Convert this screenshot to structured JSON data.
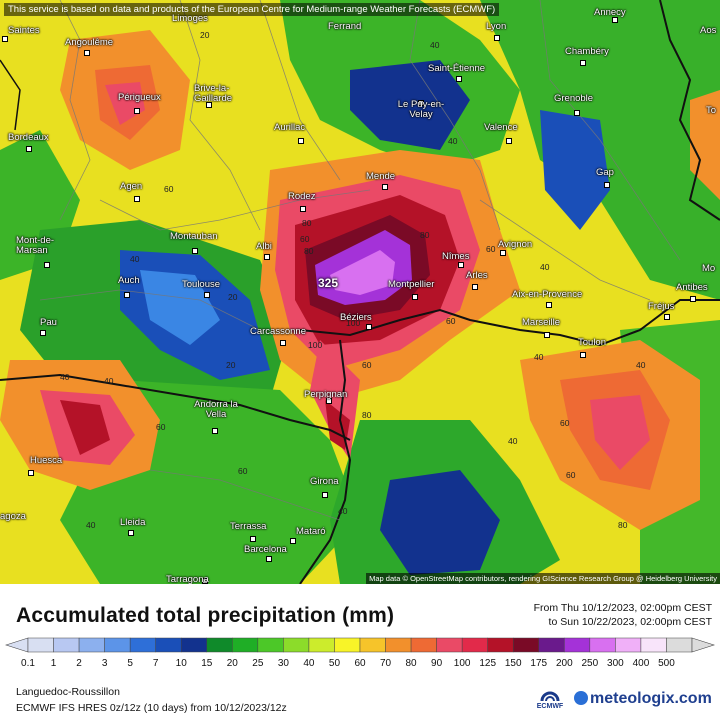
{
  "disclaimer": "This service is based on data and products of the European Centre for Medium-range Weather Forecasts (ECMWF)",
  "attribution": "Map data © OpenStreetMap contributors, rendering GIScience Research Group @ Heidelberg University",
  "title": "Accumulated total precipitation (mm)",
  "date_from": "From Thu 10/12/2023, 02:00pm CEST",
  "date_to": "to Sun 10/22/2023, 02:00pm CEST",
  "region": "Languedoc-Roussillon",
  "model": "ECMWF IFS HRES 0z/12z (10 days) from 10/12/2023/12z",
  "ecmwf_logo_text": "ECMWF",
  "brand": "meteologix.com",
  "max_value": "325",
  "legend": {
    "labels": [
      "0.1",
      "1",
      "2",
      "3",
      "5",
      "7",
      "10",
      "15",
      "20",
      "25",
      "30",
      "40",
      "50",
      "60",
      "70",
      "80",
      "90",
      "100",
      "125",
      "150",
      "175",
      "200",
      "250",
      "300",
      "400",
      "500"
    ],
    "colors": [
      "#d8dff2",
      "#b8c8f2",
      "#8cb0ee",
      "#5c94e8",
      "#2e6fd8",
      "#1a4fb8",
      "#12328e",
      "#0f8a2a",
      "#1fae26",
      "#4cc828",
      "#8cdc2a",
      "#ccec2c",
      "#f8f428",
      "#f6c42a",
      "#f2902c",
      "#ee6a34",
      "#ea4a66",
      "#e22a4a",
      "#b41228",
      "#7a0a26",
      "#6a1a8c",
      "#a432d8",
      "#d870f0",
      "#f0b0f8",
      "#f8e4fa",
      "#dcdcdc"
    ]
  },
  "cities": [
    {
      "name": "Saintes"
    },
    {
      "name": "Angoulême"
    },
    {
      "name": "Limoges"
    },
    {
      "name": "Ferrand"
    },
    {
      "name": "Lyon"
    },
    {
      "name": "Annecy"
    },
    {
      "name": "Aos"
    },
    {
      "name": "Chambéry"
    },
    {
      "name": "Saint-Étienne"
    },
    {
      "name": "Périgueux"
    },
    {
      "name": "Brive-la-Gaillarde"
    },
    {
      "name": "Le Puy-en-Velay"
    },
    {
      "name": "Grenoble"
    },
    {
      "name": "Bordeaux"
    },
    {
      "name": "Aurillac"
    },
    {
      "name": "Valence"
    },
    {
      "name": "To"
    },
    {
      "name": "Mende"
    },
    {
      "name": "Gap"
    },
    {
      "name": "Agen"
    },
    {
      "name": "Rodez"
    },
    {
      "name": "Montauban"
    },
    {
      "name": "Mont-de-Marsan"
    },
    {
      "name": "Albi"
    },
    {
      "name": "Nîmes"
    },
    {
      "name": "Avignon"
    },
    {
      "name": "Mo"
    },
    {
      "name": "Auch"
    },
    {
      "name": "Toulouse"
    },
    {
      "name": "Montpellier"
    },
    {
      "name": "Arles"
    },
    {
      "name": "Antibes"
    },
    {
      "name": "Aix-en-Provence"
    },
    {
      "name": "Fréjus"
    },
    {
      "name": "Pau"
    },
    {
      "name": "Carcassonne"
    },
    {
      "name": "Béziers"
    },
    {
      "name": "Marseille"
    },
    {
      "name": "Toulon"
    },
    {
      "name": "Perpignan"
    },
    {
      "name": "Andorra la Vella"
    },
    {
      "name": "Huesca"
    },
    {
      "name": "Girona"
    },
    {
      "name": "agoza"
    },
    {
      "name": "Lleida"
    },
    {
      "name": "Terrassa"
    },
    {
      "name": "Mataró"
    },
    {
      "name": "Barcelona"
    },
    {
      "name": "Tarragona"
    }
  ],
  "contour_labels": [
    "20",
    "40",
    "40",
    "60",
    "80",
    "20",
    "60",
    "60",
    "40",
    "40",
    "40",
    "60",
    "80",
    "40",
    "60",
    "40",
    "60",
    "80",
    "40",
    "60",
    "80",
    "100",
    "40",
    "20",
    "60",
    "60",
    "40",
    "40",
    "80",
    "100"
  ]
}
